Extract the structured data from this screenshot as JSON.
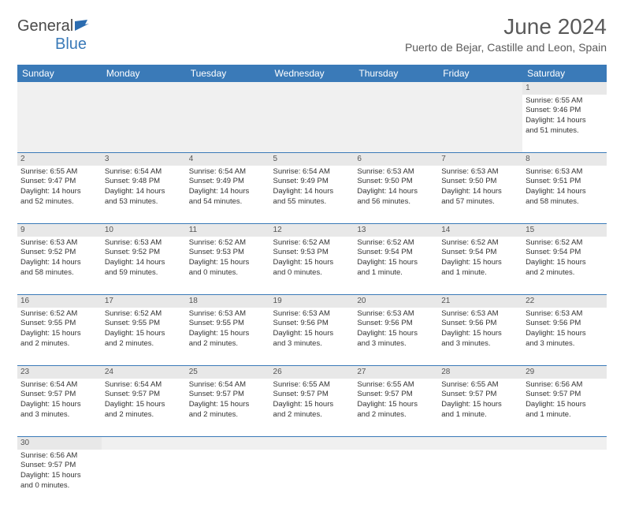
{
  "logo": {
    "text1": "General",
    "text2": "Blue",
    "flag_color": "#2b6cb0"
  },
  "header": {
    "month_title": "June 2024",
    "location": "Puerto de Bejar, Castille and Leon, Spain"
  },
  "colors": {
    "header_bg": "#3a7ab8",
    "header_text": "#ffffff",
    "daynum_bg": "#e8e8e8",
    "empty_bg": "#f0f0f0",
    "cell_border": "#3a7ab8"
  },
  "columns": [
    "Sunday",
    "Monday",
    "Tuesday",
    "Wednesday",
    "Thursday",
    "Friday",
    "Saturday"
  ],
  "weeks": [
    {
      "nums": [
        "",
        "",
        "",
        "",
        "",
        "",
        "1"
      ],
      "cells": [
        null,
        null,
        null,
        null,
        null,
        null,
        {
          "sunrise": "Sunrise: 6:55 AM",
          "sunset": "Sunset: 9:46 PM",
          "day1": "Daylight: 14 hours",
          "day2": "and 51 minutes."
        }
      ]
    },
    {
      "nums": [
        "2",
        "3",
        "4",
        "5",
        "6",
        "7",
        "8"
      ],
      "cells": [
        {
          "sunrise": "Sunrise: 6:55 AM",
          "sunset": "Sunset: 9:47 PM",
          "day1": "Daylight: 14 hours",
          "day2": "and 52 minutes."
        },
        {
          "sunrise": "Sunrise: 6:54 AM",
          "sunset": "Sunset: 9:48 PM",
          "day1": "Daylight: 14 hours",
          "day2": "and 53 minutes."
        },
        {
          "sunrise": "Sunrise: 6:54 AM",
          "sunset": "Sunset: 9:49 PM",
          "day1": "Daylight: 14 hours",
          "day2": "and 54 minutes."
        },
        {
          "sunrise": "Sunrise: 6:54 AM",
          "sunset": "Sunset: 9:49 PM",
          "day1": "Daylight: 14 hours",
          "day2": "and 55 minutes."
        },
        {
          "sunrise": "Sunrise: 6:53 AM",
          "sunset": "Sunset: 9:50 PM",
          "day1": "Daylight: 14 hours",
          "day2": "and 56 minutes."
        },
        {
          "sunrise": "Sunrise: 6:53 AM",
          "sunset": "Sunset: 9:50 PM",
          "day1": "Daylight: 14 hours",
          "day2": "and 57 minutes."
        },
        {
          "sunrise": "Sunrise: 6:53 AM",
          "sunset": "Sunset: 9:51 PM",
          "day1": "Daylight: 14 hours",
          "day2": "and 58 minutes."
        }
      ]
    },
    {
      "nums": [
        "9",
        "10",
        "11",
        "12",
        "13",
        "14",
        "15"
      ],
      "cells": [
        {
          "sunrise": "Sunrise: 6:53 AM",
          "sunset": "Sunset: 9:52 PM",
          "day1": "Daylight: 14 hours",
          "day2": "and 58 minutes."
        },
        {
          "sunrise": "Sunrise: 6:53 AM",
          "sunset": "Sunset: 9:52 PM",
          "day1": "Daylight: 14 hours",
          "day2": "and 59 minutes."
        },
        {
          "sunrise": "Sunrise: 6:52 AM",
          "sunset": "Sunset: 9:53 PM",
          "day1": "Daylight: 15 hours",
          "day2": "and 0 minutes."
        },
        {
          "sunrise": "Sunrise: 6:52 AM",
          "sunset": "Sunset: 9:53 PM",
          "day1": "Daylight: 15 hours",
          "day2": "and 0 minutes."
        },
        {
          "sunrise": "Sunrise: 6:52 AM",
          "sunset": "Sunset: 9:54 PM",
          "day1": "Daylight: 15 hours",
          "day2": "and 1 minute."
        },
        {
          "sunrise": "Sunrise: 6:52 AM",
          "sunset": "Sunset: 9:54 PM",
          "day1": "Daylight: 15 hours",
          "day2": "and 1 minute."
        },
        {
          "sunrise": "Sunrise: 6:52 AM",
          "sunset": "Sunset: 9:54 PM",
          "day1": "Daylight: 15 hours",
          "day2": "and 2 minutes."
        }
      ]
    },
    {
      "nums": [
        "16",
        "17",
        "18",
        "19",
        "20",
        "21",
        "22"
      ],
      "cells": [
        {
          "sunrise": "Sunrise: 6:52 AM",
          "sunset": "Sunset: 9:55 PM",
          "day1": "Daylight: 15 hours",
          "day2": "and 2 minutes."
        },
        {
          "sunrise": "Sunrise: 6:52 AM",
          "sunset": "Sunset: 9:55 PM",
          "day1": "Daylight: 15 hours",
          "day2": "and 2 minutes."
        },
        {
          "sunrise": "Sunrise: 6:53 AM",
          "sunset": "Sunset: 9:55 PM",
          "day1": "Daylight: 15 hours",
          "day2": "and 2 minutes."
        },
        {
          "sunrise": "Sunrise: 6:53 AM",
          "sunset": "Sunset: 9:56 PM",
          "day1": "Daylight: 15 hours",
          "day2": "and 3 minutes."
        },
        {
          "sunrise": "Sunrise: 6:53 AM",
          "sunset": "Sunset: 9:56 PM",
          "day1": "Daylight: 15 hours",
          "day2": "and 3 minutes."
        },
        {
          "sunrise": "Sunrise: 6:53 AM",
          "sunset": "Sunset: 9:56 PM",
          "day1": "Daylight: 15 hours",
          "day2": "and 3 minutes."
        },
        {
          "sunrise": "Sunrise: 6:53 AM",
          "sunset": "Sunset: 9:56 PM",
          "day1": "Daylight: 15 hours",
          "day2": "and 3 minutes."
        }
      ]
    },
    {
      "nums": [
        "23",
        "24",
        "25",
        "26",
        "27",
        "28",
        "29"
      ],
      "cells": [
        {
          "sunrise": "Sunrise: 6:54 AM",
          "sunset": "Sunset: 9:57 PM",
          "day1": "Daylight: 15 hours",
          "day2": "and 3 minutes."
        },
        {
          "sunrise": "Sunrise: 6:54 AM",
          "sunset": "Sunset: 9:57 PM",
          "day1": "Daylight: 15 hours",
          "day2": "and 2 minutes."
        },
        {
          "sunrise": "Sunrise: 6:54 AM",
          "sunset": "Sunset: 9:57 PM",
          "day1": "Daylight: 15 hours",
          "day2": "and 2 minutes."
        },
        {
          "sunrise": "Sunrise: 6:55 AM",
          "sunset": "Sunset: 9:57 PM",
          "day1": "Daylight: 15 hours",
          "day2": "and 2 minutes."
        },
        {
          "sunrise": "Sunrise: 6:55 AM",
          "sunset": "Sunset: 9:57 PM",
          "day1": "Daylight: 15 hours",
          "day2": "and 2 minutes."
        },
        {
          "sunrise": "Sunrise: 6:55 AM",
          "sunset": "Sunset: 9:57 PM",
          "day1": "Daylight: 15 hours",
          "day2": "and 1 minute."
        },
        {
          "sunrise": "Sunrise: 6:56 AM",
          "sunset": "Sunset: 9:57 PM",
          "day1": "Daylight: 15 hours",
          "day2": "and 1 minute."
        }
      ]
    },
    {
      "nums": [
        "30",
        "",
        "",
        "",
        "",
        "",
        ""
      ],
      "cells": [
        {
          "sunrise": "Sunrise: 6:56 AM",
          "sunset": "Sunset: 9:57 PM",
          "day1": "Daylight: 15 hours",
          "day2": "and 0 minutes."
        },
        null,
        null,
        null,
        null,
        null,
        null
      ]
    }
  ]
}
